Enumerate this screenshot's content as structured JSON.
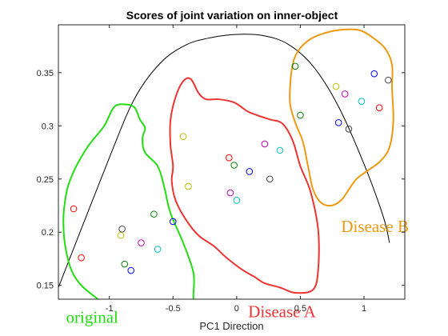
{
  "chart_data": {
    "type": "scatter",
    "title": "Scores of joint variation on inner-object",
    "xlabel": "PC1 Direction",
    "ylabel": "",
    "xlim": [
      -1.4,
      1.32
    ],
    "ylim": [
      0.137,
      0.395
    ],
    "xticks": [
      {
        "value": -1,
        "label": "-1"
      },
      {
        "value": -0.5,
        "label": "-0.5"
      },
      {
        "value": 0,
        "label": "0"
      },
      {
        "value": 0.5,
        "label": "0.5"
      },
      {
        "value": 1,
        "label": "1"
      }
    ],
    "yticks": [
      {
        "value": 0.15,
        "label": "0.15"
      },
      {
        "value": 0.2,
        "label": "0.2"
      },
      {
        "value": 0.25,
        "label": "0.25"
      },
      {
        "value": 0.3,
        "label": "0.3"
      },
      {
        "value": 0.35,
        "label": "0.35"
      }
    ],
    "grid": false,
    "marker_colors": [
      "#0000ff",
      "#008000",
      "#ff0000",
      "#00bfbf",
      "#bf00bf",
      "#bfbf00",
      "#404040"
    ],
    "points": [
      {
        "x": -1.28,
        "y": 0.222,
        "color": "#ff0000"
      },
      {
        "x": -1.22,
        "y": 0.176,
        "color": "#ff0000"
      },
      {
        "x": -0.91,
        "y": 0.197,
        "color": "#bfbf00"
      },
      {
        "x": -0.9,
        "y": 0.203,
        "color": "#404040"
      },
      {
        "x": -0.88,
        "y": 0.17,
        "color": "#008000"
      },
      {
        "x": -0.83,
        "y": 0.164,
        "color": "#0000ff"
      },
      {
        "x": -0.75,
        "y": 0.19,
        "color": "#bf00bf"
      },
      {
        "x": -0.65,
        "y": 0.217,
        "color": "#008000"
      },
      {
        "x": -0.62,
        "y": 0.184,
        "color": "#00bfbf"
      },
      {
        "x": -0.5,
        "y": 0.21,
        "color": "#0000ff"
      },
      {
        "x": -0.42,
        "y": 0.29,
        "color": "#bfbf00"
      },
      {
        "x": -0.38,
        "y": 0.243,
        "color": "#bfbf00"
      },
      {
        "x": -0.06,
        "y": 0.27,
        "color": "#ff0000"
      },
      {
        "x": -0.05,
        "y": 0.237,
        "color": "#bf00bf"
      },
      {
        "x": -0.02,
        "y": 0.263,
        "color": "#008000"
      },
      {
        "x": 0.0,
        "y": 0.23,
        "color": "#00bfbf"
      },
      {
        "x": 0.1,
        "y": 0.257,
        "color": "#0000ff"
      },
      {
        "x": 0.22,
        "y": 0.283,
        "color": "#bf00bf"
      },
      {
        "x": 0.26,
        "y": 0.25,
        "color": "#404040"
      },
      {
        "x": 0.34,
        "y": 0.277,
        "color": "#00bfbf"
      },
      {
        "x": 0.46,
        "y": 0.356,
        "color": "#008000"
      },
      {
        "x": 0.5,
        "y": 0.31,
        "color": "#008000"
      },
      {
        "x": 0.78,
        "y": 0.337,
        "color": "#bfbf00"
      },
      {
        "x": 0.8,
        "y": 0.303,
        "color": "#0000ff"
      },
      {
        "x": 0.85,
        "y": 0.33,
        "color": "#bf00bf"
      },
      {
        "x": 0.88,
        "y": 0.297,
        "color": "#404040"
      },
      {
        "x": 0.98,
        "y": 0.323,
        "color": "#00bfbf"
      },
      {
        "x": 1.08,
        "y": 0.349,
        "color": "#0000ff"
      },
      {
        "x": 1.12,
        "y": 0.317,
        "color": "#ff0000"
      },
      {
        "x": 1.19,
        "y": 0.343,
        "color": "#404040"
      }
    ],
    "curve": [
      {
        "x": -1.4,
        "y": 0.148
      },
      {
        "x": -1.0,
        "y": 0.27
      },
      {
        "x": -0.8,
        "y": 0.326
      },
      {
        "x": -0.6,
        "y": 0.359
      },
      {
        "x": -0.4,
        "y": 0.376
      },
      {
        "x": -0.2,
        "y": 0.383
      },
      {
        "x": 0.0,
        "y": 0.386
      },
      {
        "x": 0.2,
        "y": 0.385
      },
      {
        "x": 0.4,
        "y": 0.377
      },
      {
        "x": 0.6,
        "y": 0.356
      },
      {
        "x": 0.8,
        "y": 0.318
      },
      {
        "x": 1.0,
        "y": 0.264
      },
      {
        "x": 1.15,
        "y": 0.215
      },
      {
        "x": 1.2,
        "y": 0.19
      }
    ],
    "groups": [
      {
        "label": "original",
        "color": "#22dd11",
        "label_x": -1.34,
        "label_y": 0.115,
        "outline": [
          [
            -1.32,
            0.245
          ],
          [
            -1.26,
            0.262
          ],
          [
            -1.16,
            0.282
          ],
          [
            -1.04,
            0.3
          ],
          [
            -0.96,
            0.318
          ],
          [
            -0.86,
            0.32
          ],
          [
            -0.8,
            0.317
          ],
          [
            -0.76,
            0.306
          ],
          [
            -0.72,
            0.298
          ],
          [
            -0.74,
            0.288
          ],
          [
            -0.72,
            0.275
          ],
          [
            -0.62,
            0.262
          ],
          [
            -0.57,
            0.243
          ],
          [
            -0.52,
            0.218
          ],
          [
            -0.42,
            0.19
          ],
          [
            -0.34,
            0.162
          ],
          [
            -0.34,
            0.14
          ],
          [
            -0.34,
            0.123
          ],
          [
            -0.4,
            0.112
          ],
          [
            -0.48,
            0.104
          ],
          [
            -0.62,
            0.102
          ],
          [
            -0.74,
            0.104
          ],
          [
            -0.84,
            0.11
          ],
          [
            -0.92,
            0.118
          ],
          [
            -1.0,
            0.128
          ],
          [
            -1.1,
            0.138
          ],
          [
            -1.22,
            0.15
          ],
          [
            -1.3,
            0.165
          ],
          [
            -1.35,
            0.19
          ],
          [
            -1.36,
            0.215
          ],
          [
            -1.34,
            0.235
          ]
        ]
      },
      {
        "label": "Disease A",
        "color": "#ee3333",
        "label_x": 0.09,
        "label_y": 0.12,
        "outline": [
          [
            -0.5,
            0.262
          ],
          [
            -0.52,
            0.282
          ],
          [
            -0.52,
            0.305
          ],
          [
            -0.48,
            0.327
          ],
          [
            -0.42,
            0.342
          ],
          [
            -0.36,
            0.344
          ],
          [
            -0.3,
            0.331
          ],
          [
            -0.24,
            0.325
          ],
          [
            -0.14,
            0.325
          ],
          [
            -0.02,
            0.322
          ],
          [
            0.08,
            0.314
          ],
          [
            0.16,
            0.31
          ],
          [
            0.26,
            0.306
          ],
          [
            0.36,
            0.302
          ],
          [
            0.44,
            0.286
          ],
          [
            0.5,
            0.262
          ],
          [
            0.58,
            0.238
          ],
          [
            0.64,
            0.202
          ],
          [
            0.64,
            0.165
          ],
          [
            0.6,
            0.146
          ],
          [
            0.46,
            0.143
          ],
          [
            0.34,
            0.148
          ],
          [
            0.22,
            0.152
          ],
          [
            0.14,
            0.158
          ],
          [
            0.04,
            0.165
          ],
          [
            -0.08,
            0.176
          ],
          [
            -0.18,
            0.187
          ],
          [
            -0.3,
            0.197
          ],
          [
            -0.4,
            0.212
          ],
          [
            -0.48,
            0.23
          ],
          [
            -0.51,
            0.248
          ]
        ]
      },
      {
        "label": "Disease B",
        "color": "#ee9911",
        "label_x": 0.82,
        "label_y": 0.2,
        "outline": [
          [
            0.42,
            0.338
          ],
          [
            0.44,
            0.358
          ],
          [
            0.48,
            0.37
          ],
          [
            0.56,
            0.38
          ],
          [
            0.66,
            0.386
          ],
          [
            0.8,
            0.39
          ],
          [
            0.96,
            0.39
          ],
          [
            1.08,
            0.382
          ],
          [
            1.17,
            0.372
          ],
          [
            1.22,
            0.357
          ],
          [
            1.22,
            0.335
          ],
          [
            1.23,
            0.305
          ],
          [
            1.2,
            0.28
          ],
          [
            1.13,
            0.267
          ],
          [
            1.03,
            0.258
          ],
          [
            0.94,
            0.25
          ],
          [
            0.88,
            0.24
          ],
          [
            0.82,
            0.23
          ],
          [
            0.74,
            0.225
          ],
          [
            0.66,
            0.228
          ],
          [
            0.6,
            0.24
          ],
          [
            0.56,
            0.262
          ],
          [
            0.52,
            0.285
          ],
          [
            0.46,
            0.303
          ],
          [
            0.42,
            0.32
          ]
        ]
      }
    ]
  }
}
